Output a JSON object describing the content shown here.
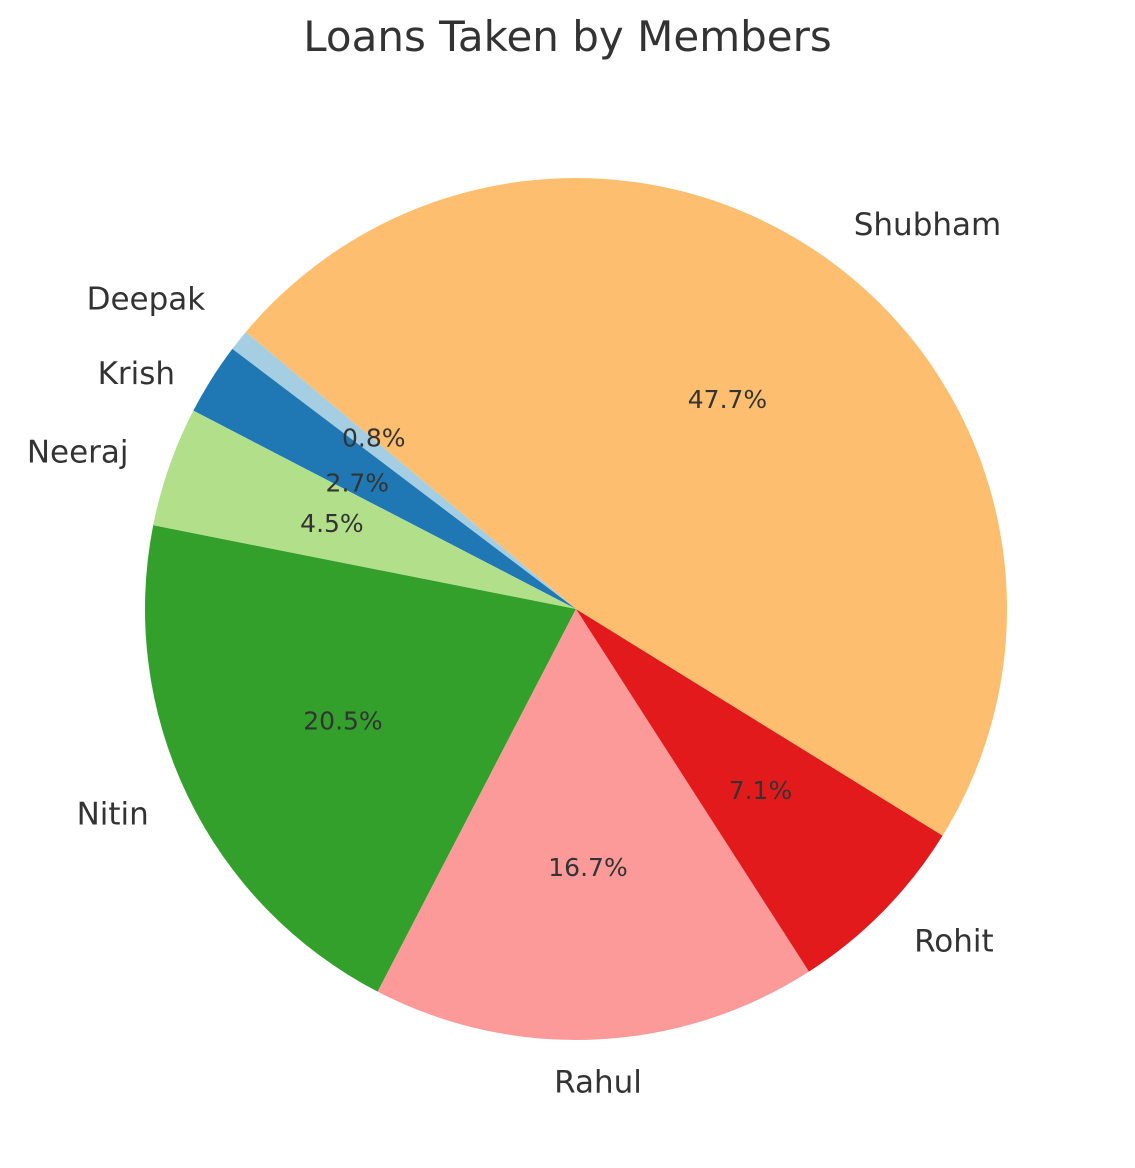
{
  "chart_data": {
    "type": "pie",
    "title": "Loans Taken by Members",
    "start_angle_deg": 140,
    "direction": "counterclockwise",
    "slices": [
      {
        "label": "Deepak",
        "value": 0.8,
        "pct_label": "0.8%",
        "color": "#a6cee3"
      },
      {
        "label": "Krish",
        "value": 2.7,
        "pct_label": "2.7%",
        "color": "#1f78b4"
      },
      {
        "label": "Neeraj",
        "value": 4.5,
        "pct_label": "4.5%",
        "color": "#b2df8a"
      },
      {
        "label": "Nitin",
        "value": 20.5,
        "pct_label": "20.5%",
        "color": "#33a02c"
      },
      {
        "label": "Rahul",
        "value": 16.7,
        "pct_label": "16.7%",
        "color": "#fb9a99"
      },
      {
        "label": "Rohit",
        "value": 7.1,
        "pct_label": "7.1%",
        "color": "#e31a1c"
      },
      {
        "label": "Shubham",
        "value": 47.7,
        "pct_label": "47.7%",
        "color": "#fdbf6f"
      }
    ]
  }
}
